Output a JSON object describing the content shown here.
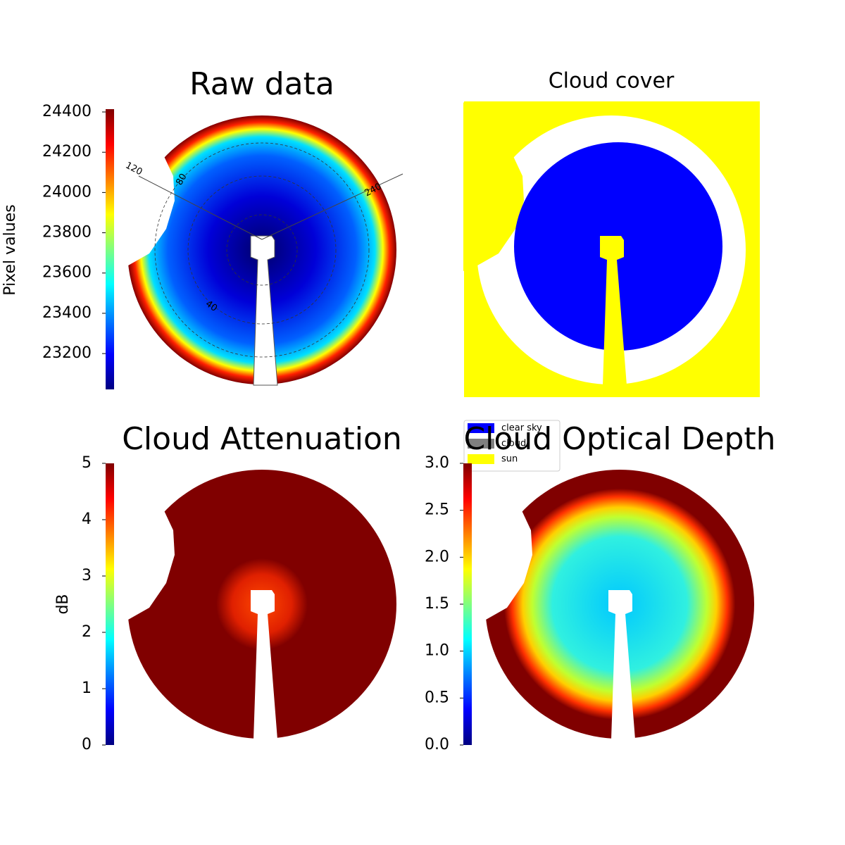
{
  "chart_data": [
    {
      "type": "image",
      "title": "Raw data",
      "colorbar_label": "Pixel values",
      "colormap": "jet",
      "clim": [
        23022,
        24414
      ],
      "cticks": [
        23200,
        23400,
        23600,
        23800,
        24000,
        24200,
        24400
      ],
      "annotations": [
        "120",
        "80",
        "240",
        "40"
      ]
    },
    {
      "type": "image",
      "title": "Cloud cover",
      "legend": [
        {
          "name": "clear sky",
          "color": "#0000ff"
        },
        {
          "name": "cloud",
          "color": "#808080"
        },
        {
          "name": "sun",
          "color": "#ffff00"
        }
      ]
    },
    {
      "type": "image",
      "title": "Cloud Attenuation",
      "colorbar_label": "dB",
      "colormap": "jet",
      "clim": [
        0,
        5
      ],
      "cticks": [
        0,
        1,
        2,
        3,
        4,
        5
      ]
    },
    {
      "type": "image",
      "title": "Cloud Optical Depth",
      "colormap": "jet",
      "clim": [
        0,
        3
      ],
      "cticks": [
        {
          "value": 0,
          "label": "0.0"
        },
        0.5,
        {
          "value": 1,
          "label": "1.0"
        },
        1.5,
        {
          "value": 2,
          "label": "2.0"
        },
        2.5,
        {
          "value": 3,
          "label": "3.0"
        }
      ]
    }
  ]
}
